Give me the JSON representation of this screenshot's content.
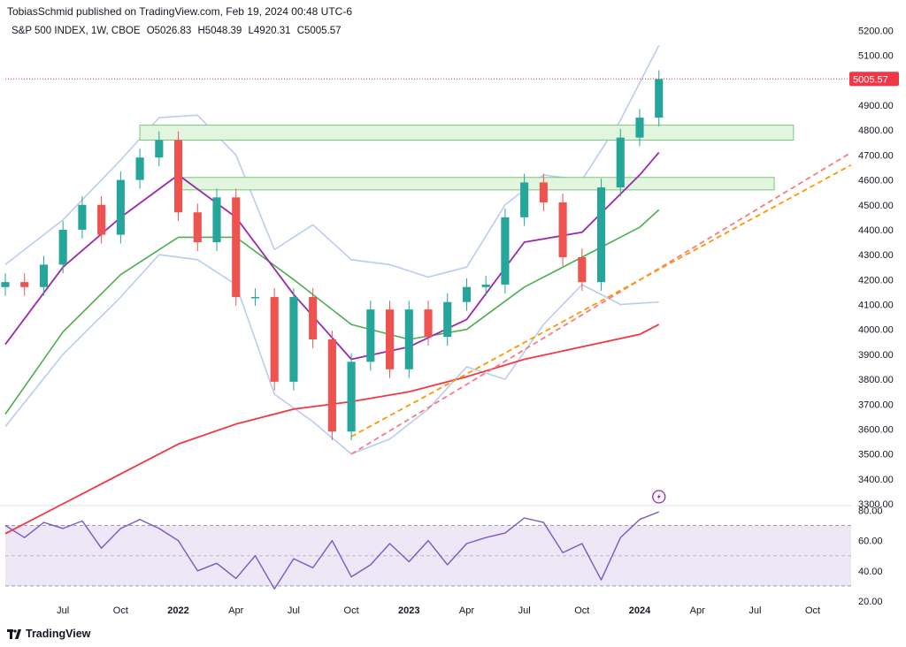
{
  "header": {
    "publisher_line": "TobiasSchmid published on TradingView.com, Feb 19, 2024 00:48 UTC-6",
    "symbol": "S&P 500 INDEX, 1W, CBOE",
    "open": "O5026.83",
    "high": "H5048.39",
    "low": "L4920.31",
    "close": "C5005.57"
  },
  "brand": {
    "name": "TradingView"
  },
  "colors": {
    "up": "#26a69a",
    "down": "#ef5350",
    "sma_short": "#9c27b0",
    "sma_mid": "#4caf50",
    "sma_long": "#f23645",
    "bands": "#b8cdf0",
    "zone_fill": "#e2f5df",
    "zone_stroke": "#7cc77a",
    "trend_red": "#f77c80",
    "trend_orange": "#ff9800",
    "price_label": "#f23645",
    "rsi_line": "#7e57c2",
    "rsi_band": "#ede7f6"
  },
  "chart_data": {
    "type": "candlestick",
    "price_axis": {
      "ticks": [
        5200,
        5100,
        5000,
        4900,
        4800,
        4700,
        4600,
        4500,
        4400,
        4300,
        4200,
        4100,
        4000,
        3900,
        3800,
        3700,
        3600,
        3500,
        3400,
        3300
      ],
      "tick_labels": [
        "5200.00",
        "5100.00",
        "5000.00",
        "4900.00",
        "4800.00",
        "4700.00",
        "4600.00",
        "4500.00",
        "4400.00",
        "4300.00",
        "4200.00",
        "4100.00",
        "4000.00",
        "3900.00",
        "3800.00",
        "3700.00",
        "3600.00",
        "3500.00",
        "3400.00",
        "3300.00"
      ],
      "range": [
        3300,
        5230
      ]
    },
    "last_price": 5005.57,
    "last_price_label": "5005.57",
    "time_axis": {
      "labels": [
        {
          "text": "Jul",
          "date": "2021-07",
          "bold": false
        },
        {
          "text": "Oct",
          "date": "2021-10",
          "bold": false
        },
        {
          "text": "2022",
          "date": "2022-01",
          "bold": true
        },
        {
          "text": "Apr",
          "date": "2022-04",
          "bold": false
        },
        {
          "text": "Jul",
          "date": "2022-07",
          "bold": false
        },
        {
          "text": "Oct",
          "date": "2022-10",
          "bold": false
        },
        {
          "text": "2023",
          "date": "2023-01",
          "bold": true
        },
        {
          "text": "Apr",
          "date": "2023-04",
          "bold": false
        },
        {
          "text": "Jul",
          "date": "2023-07",
          "bold": false
        },
        {
          "text": "Oct",
          "date": "2023-10",
          "bold": false
        },
        {
          "text": "2024",
          "date": "2024-01",
          "bold": true
        },
        {
          "text": "Apr",
          "date": "2024-04",
          "bold": false
        },
        {
          "text": "Jul",
          "date": "2024-07",
          "bold": false
        },
        {
          "text": "Oct",
          "date": "2024-10",
          "bold": false
        }
      ],
      "range": [
        "2021-04",
        "2024-12"
      ]
    },
    "closes": [
      {
        "date": "2021-04",
        "close": 4190
      },
      {
        "date": "2021-05",
        "close": 4170
      },
      {
        "date": "2021-06",
        "close": 4260
      },
      {
        "date": "2021-07",
        "close": 4400
      },
      {
        "date": "2021-08",
        "close": 4500
      },
      {
        "date": "2021-09",
        "close": 4380
      },
      {
        "date": "2021-10",
        "close": 4600
      },
      {
        "date": "2021-11",
        "close": 4690
      },
      {
        "date": "2021-12",
        "close": 4760
      },
      {
        "date": "2022-01",
        "close": 4470
      },
      {
        "date": "2022-02",
        "close": 4350
      },
      {
        "date": "2022-03",
        "close": 4530
      },
      {
        "date": "2022-04",
        "close": 4130
      },
      {
        "date": "2022-05",
        "close": 4130
      },
      {
        "date": "2022-06",
        "close": 3790
      },
      {
        "date": "2022-07",
        "close": 4130
      },
      {
        "date": "2022-08",
        "close": 3960
      },
      {
        "date": "2022-09",
        "close": 3590
      },
      {
        "date": "2022-10",
        "close": 3870
      },
      {
        "date": "2022-11",
        "close": 4080
      },
      {
        "date": "2022-12",
        "close": 3840
      },
      {
        "date": "2023-01",
        "close": 4080
      },
      {
        "date": "2023-02",
        "close": 3970
      },
      {
        "date": "2023-03",
        "close": 4110
      },
      {
        "date": "2023-04",
        "close": 4170
      },
      {
        "date": "2023-05",
        "close": 4180
      },
      {
        "date": "2023-06",
        "close": 4450
      },
      {
        "date": "2023-07",
        "close": 4590
      },
      {
        "date": "2023-08",
        "close": 4510
      },
      {
        "date": "2023-09",
        "close": 4290
      },
      {
        "date": "2023-10",
        "close": 4190
      },
      {
        "date": "2023-11",
        "close": 4570
      },
      {
        "date": "2023-12",
        "close": 4770
      },
      {
        "date": "2024-01",
        "close": 4850
      },
      {
        "date": "2024-02",
        "close": 5005
      }
    ],
    "moving_averages": {
      "short": [
        {
          "date": "2021-04",
          "value": 3940
        },
        {
          "date": "2021-07",
          "value": 4250
        },
        {
          "date": "2021-10",
          "value": 4450
        },
        {
          "date": "2022-01",
          "value": 4620
        },
        {
          "date": "2022-04",
          "value": 4450
        },
        {
          "date": "2022-07",
          "value": 4140
        },
        {
          "date": "2022-10",
          "value": 3880
        },
        {
          "date": "2023-01",
          "value": 3930
        },
        {
          "date": "2023-04",
          "value": 4040
        },
        {
          "date": "2023-07",
          "value": 4350
        },
        {
          "date": "2023-10",
          "value": 4390
        },
        {
          "date": "2024-01",
          "value": 4620
        },
        {
          "date": "2024-02",
          "value": 4710
        }
      ],
      "mid": [
        {
          "date": "2021-04",
          "value": 3660
        },
        {
          "date": "2021-07",
          "value": 3990
        },
        {
          "date": "2021-10",
          "value": 4220
        },
        {
          "date": "2022-01",
          "value": 4370
        },
        {
          "date": "2022-04",
          "value": 4370
        },
        {
          "date": "2022-07",
          "value": 4200
        },
        {
          "date": "2022-10",
          "value": 4020
        },
        {
          "date": "2023-01",
          "value": 3960
        },
        {
          "date": "2023-04",
          "value": 4000
        },
        {
          "date": "2023-07",
          "value": 4170
        },
        {
          "date": "2023-10",
          "value": 4290
        },
        {
          "date": "2024-01",
          "value": 4410
        },
        {
          "date": "2024-02",
          "value": 4480
        }
      ],
      "long": [
        {
          "date": "2021-04",
          "value": 3180
        },
        {
          "date": "2021-07",
          "value": 3300
        },
        {
          "date": "2021-10",
          "value": 3420
        },
        {
          "date": "2022-01",
          "value": 3540
        },
        {
          "date": "2022-04",
          "value": 3620
        },
        {
          "date": "2022-07",
          "value": 3680
        },
        {
          "date": "2022-10",
          "value": 3710
        },
        {
          "date": "2023-01",
          "value": 3750
        },
        {
          "date": "2023-04",
          "value": 3810
        },
        {
          "date": "2023-07",
          "value": 3880
        },
        {
          "date": "2023-10",
          "value": 3930
        },
        {
          "date": "2024-01",
          "value": 3980
        },
        {
          "date": "2024-02",
          "value": 4020
        }
      ]
    },
    "bands": {
      "upper": [
        {
          "date": "2021-04",
          "value": 4260
        },
        {
          "date": "2021-07",
          "value": 4440
        },
        {
          "date": "2021-10",
          "value": 4680
        },
        {
          "date": "2021-12",
          "value": 4850
        },
        {
          "date": "2022-02",
          "value": 4860
        },
        {
          "date": "2022-04",
          "value": 4700
        },
        {
          "date": "2022-06",
          "value": 4320
        },
        {
          "date": "2022-08",
          "value": 4420
        },
        {
          "date": "2022-10",
          "value": 4280
        },
        {
          "date": "2022-12",
          "value": 4260
        },
        {
          "date": "2023-02",
          "value": 4210
        },
        {
          "date": "2023-04",
          "value": 4250
        },
        {
          "date": "2023-06",
          "value": 4500
        },
        {
          "date": "2023-08",
          "value": 4620
        },
        {
          "date": "2023-10",
          "value": 4600
        },
        {
          "date": "2023-12",
          "value": 4840
        },
        {
          "date": "2024-02",
          "value": 5140
        }
      ],
      "lower": [
        {
          "date": "2021-04",
          "value": 3610
        },
        {
          "date": "2021-07",
          "value": 3900
        },
        {
          "date": "2021-10",
          "value": 4130
        },
        {
          "date": "2021-12",
          "value": 4300
        },
        {
          "date": "2022-02",
          "value": 4280
        },
        {
          "date": "2022-04",
          "value": 4180
        },
        {
          "date": "2022-06",
          "value": 3740
        },
        {
          "date": "2022-08",
          "value": 3630
        },
        {
          "date": "2022-10",
          "value": 3500
        },
        {
          "date": "2022-12",
          "value": 3560
        },
        {
          "date": "2023-02",
          "value": 3680
        },
        {
          "date": "2023-04",
          "value": 3850
        },
        {
          "date": "2023-06",
          "value": 3800
        },
        {
          "date": "2023-08",
          "value": 4020
        },
        {
          "date": "2023-10",
          "value": 4180
        },
        {
          "date": "2023-12",
          "value": 4100
        },
        {
          "date": "2024-02",
          "value": 4110
        }
      ]
    },
    "resistance_zones": [
      {
        "from": "2021-11",
        "to": "2024-09",
        "low": 4760,
        "high": 4820
      },
      {
        "from": "2022-01",
        "to": "2024-08",
        "low": 4560,
        "high": 4610
      }
    ],
    "trendlines": [
      {
        "color": "red",
        "from": {
          "date": "2022-10",
          "value": 3500
        },
        "to": {
          "date": "2024-12",
          "value": 4710
        }
      },
      {
        "color": "orange",
        "from": {
          "date": "2022-10",
          "value": 3570
        },
        "to": {
          "date": "2024-12",
          "value": 4660
        }
      }
    ],
    "rsi": {
      "ticks": [
        80,
        60,
        40,
        20
      ],
      "tick_labels": [
        "80.00",
        "60.00",
        "40.00",
        "20.00"
      ],
      "band": [
        30,
        70
      ],
      "range": [
        20,
        82
      ],
      "values": [
        {
          "date": "2021-04",
          "value": 70
        },
        {
          "date": "2021-05",
          "value": 62
        },
        {
          "date": "2021-06",
          "value": 72
        },
        {
          "date": "2021-07",
          "value": 68
        },
        {
          "date": "2021-08",
          "value": 73
        },
        {
          "date": "2021-09",
          "value": 55
        },
        {
          "date": "2021-10",
          "value": 68
        },
        {
          "date": "2021-11",
          "value": 74
        },
        {
          "date": "2021-12",
          "value": 68
        },
        {
          "date": "2022-01",
          "value": 60
        },
        {
          "date": "2022-02",
          "value": 40
        },
        {
          "date": "2022-03",
          "value": 45
        },
        {
          "date": "2022-04",
          "value": 35
        },
        {
          "date": "2022-05",
          "value": 50
        },
        {
          "date": "2022-06",
          "value": 28
        },
        {
          "date": "2022-07",
          "value": 48
        },
        {
          "date": "2022-08",
          "value": 42
        },
        {
          "date": "2022-09",
          "value": 60
        },
        {
          "date": "2022-10",
          "value": 36
        },
        {
          "date": "2022-11",
          "value": 44
        },
        {
          "date": "2022-12",
          "value": 58
        },
        {
          "date": "2023-01",
          "value": 46
        },
        {
          "date": "2023-02",
          "value": 60
        },
        {
          "date": "2023-03",
          "value": 44
        },
        {
          "date": "2023-04",
          "value": 58
        },
        {
          "date": "2023-05",
          "value": 62
        },
        {
          "date": "2023-06",
          "value": 65
        },
        {
          "date": "2023-07",
          "value": 75
        },
        {
          "date": "2023-08",
          "value": 72
        },
        {
          "date": "2023-09",
          "value": 52
        },
        {
          "date": "2023-10",
          "value": 58
        },
        {
          "date": "2023-11",
          "value": 34
        },
        {
          "date": "2023-12",
          "value": 62
        },
        {
          "date": "2024-01",
          "value": 74
        },
        {
          "date": "2024-02",
          "value": 79
        }
      ]
    }
  }
}
